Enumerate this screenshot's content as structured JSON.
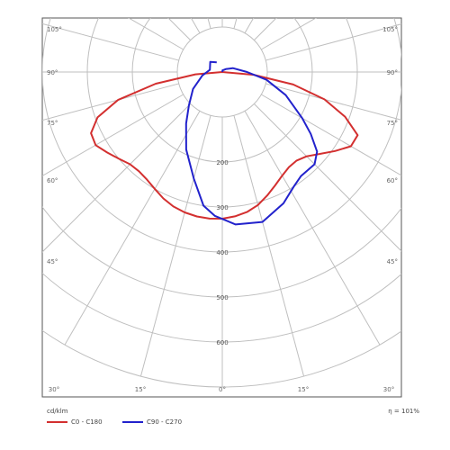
{
  "chart_data": {
    "type": "polar",
    "unit_label": "cd/klm",
    "efficiency": "η = 101%",
    "radial_ticks": [
      200,
      300,
      400,
      500,
      600
    ],
    "radial_max": 700,
    "angle_ticks": [
      "0°",
      "15°",
      "30°",
      "45°",
      "60°",
      "75°",
      "90°",
      "105°"
    ],
    "bottom_tick_labels": [
      "30°",
      "15°",
      "0°",
      "15°",
      "30°"
    ],
    "left_tick_labels": [
      "105°",
      "90°",
      "75°",
      "60°",
      "45°"
    ],
    "right_tick_labels": [
      "105°",
      "90°",
      "75°",
      "60°",
      "45°"
    ],
    "legend_position": "bottom-left",
    "grid": true,
    "series": [
      {
        "name": "C0 - C180",
        "color": "#d32f2f",
        "points": [
          [
            -95,
            0
          ],
          [
            -90,
            0
          ],
          [
            -85,
            60
          ],
          [
            -80,
            150
          ],
          [
            -75,
            240
          ],
          [
            -70,
            295
          ],
          [
            -65,
            322
          ],
          [
            -60,
            325
          ],
          [
            -55,
            312
          ],
          [
            -50,
            300
          ],
          [
            -45,
            290
          ],
          [
            -40,
            288
          ],
          [
            -35,
            292
          ],
          [
            -30,
            300
          ],
          [
            -25,
            310
          ],
          [
            -20,
            318
          ],
          [
            -15,
            323
          ],
          [
            -10,
            326
          ],
          [
            -5,
            327
          ],
          [
            0,
            326
          ],
          [
            5,
            322
          ],
          [
            10,
            316
          ],
          [
            15,
            306
          ],
          [
            20,
            292
          ],
          [
            25,
            278
          ],
          [
            30,
            266
          ],
          [
            35,
            258
          ],
          [
            40,
            257
          ],
          [
            45,
            265
          ],
          [
            50,
            283
          ],
          [
            55,
            306
          ],
          [
            60,
            330
          ],
          [
            65,
            332
          ],
          [
            70,
            290
          ],
          [
            75,
            235
          ],
          [
            80,
            160
          ],
          [
            85,
            70
          ],
          [
            90,
            0
          ],
          [
            95,
            0
          ]
        ]
      },
      {
        "name": "C90 - C270",
        "color": "#2222cc",
        "points": [
          [
            -150,
            25
          ],
          [
            -130,
            35
          ],
          [
            -100,
            28
          ],
          [
            -80,
            45
          ],
          [
            -60,
            75
          ],
          [
            -45,
            105
          ],
          [
            -35,
            140
          ],
          [
            -25,
            190
          ],
          [
            -15,
            245
          ],
          [
            -8,
            300
          ],
          [
            -3,
            320
          ],
          [
            5,
            340
          ],
          [
            15,
            345
          ],
          [
            25,
            322
          ],
          [
            32,
            300
          ],
          [
            37,
            290
          ],
          [
            45,
            290
          ],
          [
            50,
            275
          ],
          [
            55,
            240
          ],
          [
            60,
            205
          ],
          [
            70,
            150
          ],
          [
            80,
            100
          ],
          [
            90,
            55
          ],
          [
            110,
            25
          ],
          [
            130,
            10
          ],
          [
            150,
            5
          ],
          [
            170,
            4
          ],
          [
            180,
            0
          ]
        ]
      }
    ]
  }
}
